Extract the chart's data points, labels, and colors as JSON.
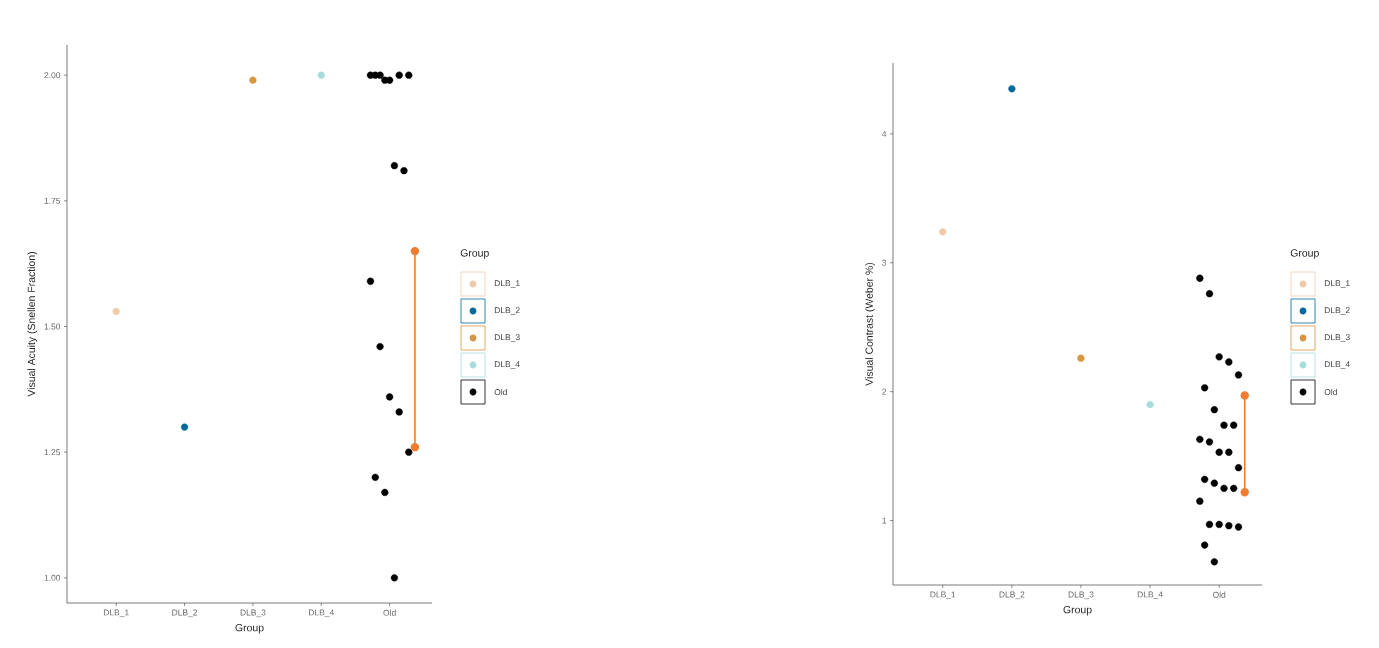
{
  "chart_data": [
    {
      "type": "scatter",
      "xlabel": "Group",
      "ylabel": "Visual Acuity (Snellen Fraction)",
      "legend_title": "Group",
      "legend": "right",
      "marker": "circle",
      "categories": [
        "DLB_1",
        "DLB_2",
        "DLB_3",
        "DLB_4",
        "Old"
      ],
      "ylim": [
        0.95,
        2.06
      ],
      "yticks": [
        {
          "value": 1,
          "label": "1.00"
        },
        {
          "value": 1.25,
          "label": "1.25"
        },
        {
          "value": 1.5,
          "label": "1.50"
        },
        {
          "value": 1.75,
          "label": "1.75"
        },
        {
          "value": 2,
          "label": "2.00"
        }
      ],
      "series": [
        {
          "name": "DLB_1",
          "color": "#eecaa8",
          "x": [
            "DLB_1"
          ],
          "values": [
            1.53
          ]
        },
        {
          "name": "DLB_2",
          "color": "#00689c",
          "x": [
            "DLB_2"
          ],
          "values": [
            1.3
          ]
        },
        {
          "name": "DLB_3",
          "color": "#d8963e",
          "x": [
            "DLB_3"
          ],
          "values": [
            1.99
          ]
        },
        {
          "name": "DLB_4",
          "color": "#a8dcdc",
          "x": [
            "DLB_4"
          ],
          "values": [
            2.0
          ]
        },
        {
          "name": "Old",
          "color": "#000000",
          "x": [
            "Old",
            "Old",
            "Old",
            "Old",
            "Old",
            "Old",
            "Old",
            "Old",
            "Old",
            "Old",
            "Old",
            "Old",
            "Old",
            "Old",
            "Old",
            "Old",
            "Old"
          ],
          "values": [
            2.0,
            2.0,
            1.99,
            2.0,
            2.0,
            2.0,
            1.99,
            1.82,
            1.81,
            1.59,
            1.46,
            1.36,
            1.33,
            1.25,
            1.2,
            1.17,
            1.0
          ]
        },
        {
          "type": "line",
          "color": "#ee7d31",
          "x": [
            "Old",
            "Old"
          ],
          "values": [
            1.26,
            1.65
          ]
        }
      ]
    },
    {
      "type": "scatter",
      "xlabel": "Group",
      "ylabel": "Visual Contrast (Weber %)",
      "legend_title": "Group",
      "legend": "right",
      "marker": "circle",
      "categories": [
        "DLB_1",
        "DLB_2",
        "DLB_3",
        "DLB_4",
        "Old"
      ],
      "ylim": [
        0.5,
        4.55
      ],
      "yticks": [
        1,
        2,
        3,
        4
      ],
      "series": [
        {
          "name": "DLB_1",
          "color": "#eecaa8",
          "x": [
            "DLB_1"
          ],
          "values": [
            3.24
          ]
        },
        {
          "name": "DLB_2",
          "color": "#00689c",
          "x": [
            "DLB_2"
          ],
          "values": [
            4.35
          ]
        },
        {
          "name": "DLB_3",
          "color": "#d8963e",
          "x": [
            "DLB_3"
          ],
          "values": [
            2.26
          ]
        },
        {
          "name": "DLB_4",
          "color": "#a8dcdc",
          "x": [
            "DLB_4"
          ],
          "values": [
            1.9
          ]
        },
        {
          "name": "Old",
          "color": "#000000",
          "x": [
            "Old",
            "Old",
            "Old",
            "Old",
            "Old",
            "Old",
            "Old",
            "Old",
            "Old",
            "Old",
            "Old",
            "Old",
            "Old",
            "Old",
            "Old",
            "Old",
            "Old",
            "Old",
            "Old",
            "Old",
            "Old",
            "Old",
            "Old",
            "Old",
            "Old"
          ],
          "values": [
            2.88,
            2.76,
            2.27,
            2.23,
            2.13,
            2.03,
            1.86,
            1.74,
            1.74,
            1.63,
            1.61,
            1.53,
            1.53,
            1.41,
            1.32,
            1.29,
            1.25,
            1.25,
            1.15,
            0.97,
            0.97,
            0.96,
            0.95,
            0.81,
            0.68
          ]
        },
        {
          "type": "line",
          "color": "#ee7d31",
          "x": [
            "Old",
            "Old"
          ],
          "values": [
            1.22,
            1.97
          ]
        }
      ]
    }
  ]
}
